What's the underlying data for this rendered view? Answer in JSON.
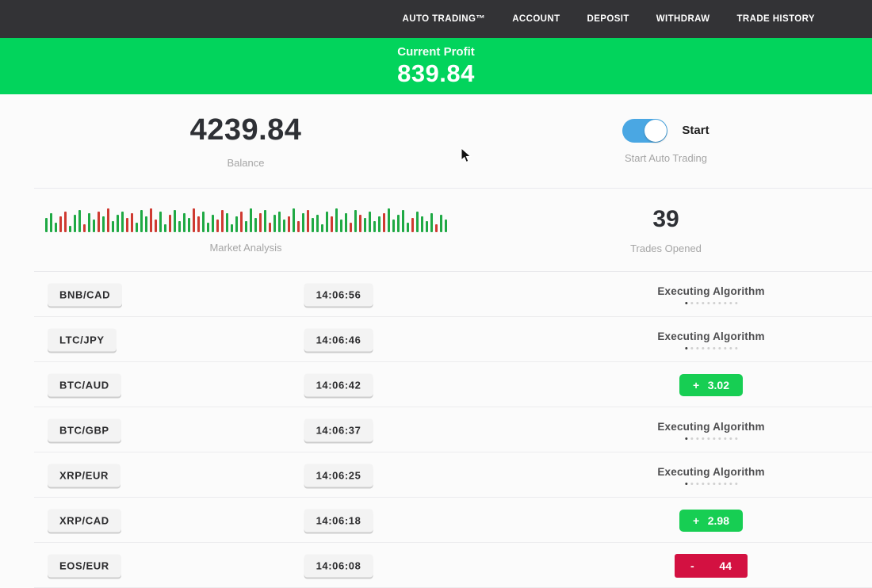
{
  "nav": {
    "items": [
      {
        "id": "auto-trading",
        "label": "AUTO TRADING™"
      },
      {
        "id": "account",
        "label": "ACCOUNT"
      },
      {
        "id": "deposit",
        "label": "DEPOSIT"
      },
      {
        "id": "withdraw",
        "label": "WITHDRAW"
      },
      {
        "id": "trade-history",
        "label": "TRADE HISTORY"
      }
    ],
    "bg_color": "#333336"
  },
  "banner": {
    "label": "Current Profit",
    "value": "839.84",
    "bg_color": "#02d45c"
  },
  "stats": {
    "balance": {
      "value": "4239.84",
      "label": "Balance"
    },
    "auto_trading": {
      "toggle_on": true,
      "toggle_color": "#4aa7e3",
      "toggle_label": "Start",
      "label": "Start Auto Trading"
    },
    "market": {
      "label": "Market Analysis"
    },
    "trades_opened": {
      "value": "39",
      "label": "Trades Opened"
    }
  },
  "chart_data": {
    "type": "bar",
    "title": "Market Analysis",
    "note": "decorative mini candlestick strip, bottom-aligned bars",
    "colors": {
      "g": "#1fa944",
      "r": "#cf3a31"
    },
    "bars": [
      [
        18,
        "g"
      ],
      [
        24,
        "g"
      ],
      [
        12,
        "g"
      ],
      [
        20,
        "r"
      ],
      [
        26,
        "r"
      ],
      [
        8,
        "g"
      ],
      [
        22,
        "g"
      ],
      [
        28,
        "g"
      ],
      [
        10,
        "r"
      ],
      [
        24,
        "g"
      ],
      [
        16,
        "g"
      ],
      [
        26,
        "r"
      ],
      [
        20,
        "g"
      ],
      [
        30,
        "r"
      ],
      [
        14,
        "g"
      ],
      [
        22,
        "g"
      ],
      [
        26,
        "g"
      ],
      [
        18,
        "r"
      ],
      [
        24,
        "r"
      ],
      [
        12,
        "g"
      ],
      [
        28,
        "g"
      ],
      [
        20,
        "g"
      ],
      [
        30,
        "r"
      ],
      [
        16,
        "r"
      ],
      [
        26,
        "g"
      ],
      [
        10,
        "g"
      ],
      [
        22,
        "r"
      ],
      [
        28,
        "g"
      ],
      [
        14,
        "g"
      ],
      [
        24,
        "g"
      ],
      [
        18,
        "g"
      ],
      [
        30,
        "r"
      ],
      [
        20,
        "r"
      ],
      [
        26,
        "g"
      ],
      [
        12,
        "g"
      ],
      [
        22,
        "g"
      ],
      [
        16,
        "r"
      ],
      [
        28,
        "r"
      ],
      [
        24,
        "g"
      ],
      [
        10,
        "g"
      ],
      [
        20,
        "g"
      ],
      [
        26,
        "r"
      ],
      [
        14,
        "g"
      ],
      [
        30,
        "g"
      ],
      [
        18,
        "g"
      ],
      [
        24,
        "r"
      ],
      [
        28,
        "g"
      ],
      [
        12,
        "r"
      ],
      [
        22,
        "g"
      ],
      [
        26,
        "g"
      ],
      [
        16,
        "g"
      ],
      [
        20,
        "r"
      ],
      [
        30,
        "g"
      ],
      [
        14,
        "r"
      ],
      [
        24,
        "g"
      ],
      [
        28,
        "r"
      ],
      [
        18,
        "g"
      ],
      [
        22,
        "g"
      ],
      [
        10,
        "g"
      ],
      [
        26,
        "g"
      ],
      [
        20,
        "r"
      ],
      [
        30,
        "g"
      ],
      [
        16,
        "g"
      ],
      [
        24,
        "g"
      ],
      [
        12,
        "r"
      ],
      [
        28,
        "g"
      ],
      [
        22,
        "r"
      ],
      [
        18,
        "g"
      ],
      [
        26,
        "g"
      ],
      [
        14,
        "g"
      ],
      [
        20,
        "g"
      ],
      [
        24,
        "r"
      ],
      [
        30,
        "g"
      ],
      [
        16,
        "g"
      ],
      [
        22,
        "g"
      ],
      [
        28,
        "g"
      ],
      [
        12,
        "g"
      ],
      [
        18,
        "r"
      ],
      [
        26,
        "g"
      ],
      [
        20,
        "g"
      ],
      [
        14,
        "g"
      ],
      [
        24,
        "g"
      ],
      [
        10,
        "r"
      ],
      [
        22,
        "g"
      ],
      [
        16,
        "g"
      ]
    ]
  },
  "trades": {
    "executing_label": "Executing Algorithm",
    "win_color": "#17ce53",
    "loss_color": "#d31141",
    "rows": [
      {
        "pair": "BNB/CAD",
        "time": "14:06:56",
        "result": {
          "type": "executing"
        }
      },
      {
        "pair": "LTC/JPY",
        "time": "14:06:46",
        "result": {
          "type": "executing"
        }
      },
      {
        "pair": "BTC/AUD",
        "time": "14:06:42",
        "result": {
          "type": "win",
          "sign": "+",
          "value": "3.02"
        }
      },
      {
        "pair": "BTC/GBP",
        "time": "14:06:37",
        "result": {
          "type": "executing"
        }
      },
      {
        "pair": "XRP/EUR",
        "time": "14:06:25",
        "result": {
          "type": "executing"
        }
      },
      {
        "pair": "XRP/CAD",
        "time": "14:06:18",
        "result": {
          "type": "win",
          "sign": "+",
          "value": "2.98"
        }
      },
      {
        "pair": "EOS/EUR",
        "time": "14:06:08",
        "result": {
          "type": "loss",
          "sign": "-",
          "value": "44"
        }
      }
    ]
  }
}
